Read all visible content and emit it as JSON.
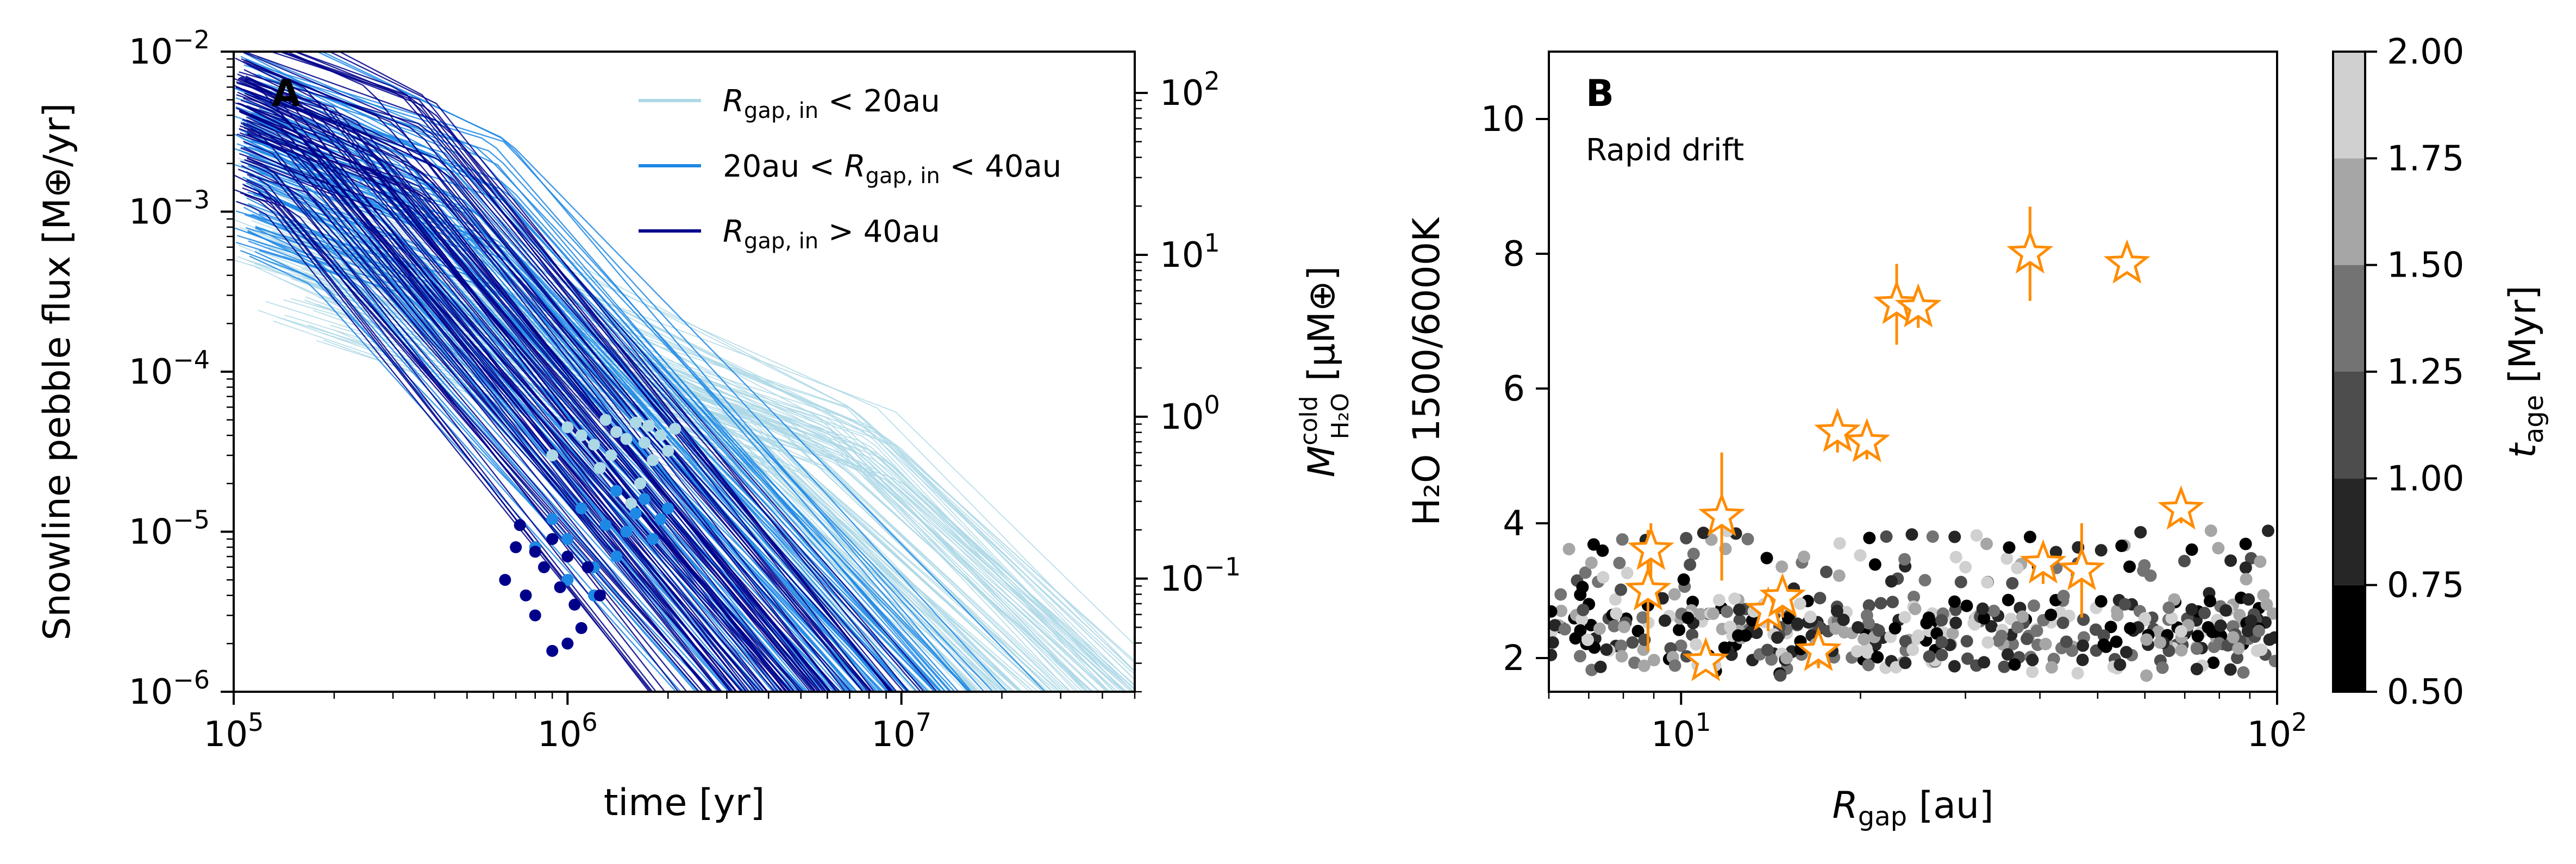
{
  "chart_data": [
    {
      "panel": "A",
      "type": "line",
      "panel_label": "A",
      "xlabel": "time [yr]",
      "ylabel": "Snowline pebble flux [M⊕/yr]",
      "y2label_html": "M^cold_H2O [µM⊕]",
      "y2label_parts": {
        "symbol": "M",
        "sup": "cold",
        "sub": "H₂O",
        "unit": " [μM⊕]"
      },
      "xscale": "log",
      "yscale": "log",
      "xlim": [
        100000,
        50000000
      ],
      "ylim": [
        1e-06,
        0.01
      ],
      "x_ticks": [
        {
          "value": 100000,
          "base": "10",
          "exp": "5"
        },
        {
          "value": 1000000,
          "base": "10",
          "exp": "6"
        },
        {
          "value": 10000000,
          "base": "10",
          "exp": "7"
        }
      ],
      "y_ticks": [
        {
          "value": 0.01,
          "base": "10",
          "exp": "−2"
        },
        {
          "value": 0.001,
          "base": "10",
          "exp": "−3"
        },
        {
          "value": 0.0001,
          "base": "10",
          "exp": "−4"
        },
        {
          "value": 1e-05,
          "base": "10",
          "exp": "−5"
        },
        {
          "value": 1e-06,
          "base": "10",
          "exp": "−6"
        }
      ],
      "y2scale": "log",
      "y2lim": [
        0.02,
        180
      ],
      "y2_ticks": [
        {
          "value": 100,
          "base": "10",
          "exp": "2"
        },
        {
          "value": 10,
          "base": "10",
          "exp": "1"
        },
        {
          "value": 1,
          "base": "10",
          "exp": "0"
        },
        {
          "value": 0.1,
          "base": "10",
          "exp": "−1"
        }
      ],
      "legend_position": "top-right",
      "series": [
        {
          "name": "R_gap,in < 20au",
          "legend_html": [
            "R",
            "gap, in",
            " < 20au"
          ],
          "color": "#add8e6",
          "n_curves": 120,
          "curve_params": {
            "plateau_range": [
              2e-05,
              6e-05
            ],
            "t_break_range": [
              2000000,
              10000000
            ],
            "slope": -2.0,
            "t_start_range": [
              100000,
              200000
            ]
          }
        },
        {
          "name": "20au < R_gap,in < 40au",
          "legend_html": [
            "20au < R",
            "gap, in",
            " < 40au"
          ],
          "color": "#1e88e5",
          "n_curves": 110,
          "curve_params": {
            "plateau_range": [
              0.0003,
              0.003
            ],
            "t_break_range": [
              150000,
              700000
            ],
            "slope": -2.3,
            "t_start_range": [
              100000,
              120000
            ]
          }
        },
        {
          "name": "R_gap,in > 40au",
          "legend_html": [
            "R",
            "gap, in",
            " > 40au"
          ],
          "color": "#00008b",
          "n_curves": 90,
          "curve_params": {
            "plateau_range": [
              0.001,
              0.006
            ],
            "t_break_range": [
              120000,
              450000
            ],
            "slope": -2.5,
            "t_start_range": [
              100000,
              110000
            ]
          }
        }
      ],
      "scatter_groups": [
        {
          "series": "R_gap,in < 20au",
          "color": "#add8e6",
          "points": [
            [
              900000,
              3e-05
            ],
            [
              1000000,
              4.5e-05
            ],
            [
              1100000,
              4e-05
            ],
            [
              1200000,
              3.5e-05
            ],
            [
              1300000,
              5e-05
            ],
            [
              1400000,
              4.2e-05
            ],
            [
              1500000,
              3.8e-05
            ],
            [
              1600000,
              4.8e-05
            ],
            [
              1700000,
              3.6e-05
            ],
            [
              1800000,
              2.8e-05
            ],
            [
              1900000,
              4e-05
            ],
            [
              2000000,
              3.2e-05
            ],
            [
              2100000,
              4.4e-05
            ],
            [
              1350000,
              3e-05
            ],
            [
              1650000,
              2e-05
            ],
            [
              1750000,
              4.6e-05
            ],
            [
              1250000,
              2.5e-05
            ],
            [
              1550000,
              1.5e-05
            ]
          ]
        },
        {
          "series": "20au < R_gap,in < 40au",
          "color": "#1e88e5",
          "points": [
            [
              800000,
              8e-06
            ],
            [
              900000,
              1.2e-05
            ],
            [
              1000000,
              9e-06
            ],
            [
              1100000,
              1.4e-05
            ],
            [
              1200000,
              6e-06
            ],
            [
              1300000,
              1.1e-05
            ],
            [
              1400000,
              7e-06
            ],
            [
              1500000,
              1e-05
            ],
            [
              1600000,
              1.3e-05
            ],
            [
              1700000,
              1.6e-05
            ],
            [
              1800000,
              9e-06
            ],
            [
              1900000,
              1.2e-05
            ],
            [
              1000000,
              5e-06
            ],
            [
              1200000,
              4e-06
            ],
            [
              1400000,
              1.8e-05
            ],
            [
              2000000,
              1.4e-05
            ]
          ]
        },
        {
          "series": "R_gap,in > 40au",
          "color": "#00008b",
          "points": [
            [
              650000,
              5e-06
            ],
            [
              700000,
              8e-06
            ],
            [
              750000,
              4e-06
            ],
            [
              800000,
              3e-06
            ],
            [
              850000,
              6e-06
            ],
            [
              900000,
              9e-06
            ],
            [
              950000,
              4.5e-06
            ],
            [
              1000000,
              7e-06
            ],
            [
              1050000,
              3.5e-06
            ],
            [
              1100000,
              2.5e-06
            ],
            [
              1150000,
              6e-06
            ],
            [
              1250000,
              4e-06
            ],
            [
              900000,
              1.8e-06
            ],
            [
              1000000,
              2e-06
            ],
            [
              800000,
              7.5e-06
            ],
            [
              720000,
              1.1e-05
            ]
          ]
        }
      ]
    },
    {
      "panel": "B",
      "type": "scatter",
      "panel_label": "B",
      "annotation": "Rapid drift",
      "xlabel": {
        "symbol": "R",
        "sub": "gap",
        "unit": " [au]"
      },
      "ylabel": "H₂O 1500/6000K",
      "xscale": "log",
      "xlim": [
        6,
        100
      ],
      "ylim": [
        1.5,
        11
      ],
      "x_ticks": [
        {
          "value": 10,
          "base": "10",
          "exp": "1"
        },
        {
          "value": 100,
          "base": "10",
          "exp": "2"
        }
      ],
      "y_ticks": [
        {
          "value": 2,
          "label": "2"
        },
        {
          "value": 4,
          "label": "4"
        },
        {
          "value": 6,
          "label": "6"
        },
        {
          "value": 8,
          "label": "8"
        },
        {
          "value": 10,
          "label": "10"
        }
      ],
      "colorbar": {
        "label": {
          "symbol": "t",
          "sub": "age",
          "unit": " [Myr]"
        },
        "range": [
          0.5,
          2.0
        ],
        "ticks": [
          "0.50",
          "0.75",
          "1.00",
          "1.25",
          "1.50",
          "1.75",
          "2.00"
        ],
        "bins": [
          {
            "from": 0.5,
            "to": 0.75,
            "color": "#000000"
          },
          {
            "from": 0.75,
            "to": 1.0,
            "color": "#262626"
          },
          {
            "from": 1.0,
            "to": 1.25,
            "color": "#4d4d4d"
          },
          {
            "from": 1.25,
            "to": 1.5,
            "color": "#737373"
          },
          {
            "from": 1.5,
            "to": 1.75,
            "color": "#a6a6a6"
          },
          {
            "from": 1.75,
            "to": 2.0,
            "color": "#d0d0d0"
          }
        ]
      },
      "model_points_description": "dense band of model points between y = 1.7 and 3.9 across the full x range",
      "model_points": {
        "count": 520,
        "y_range": [
          1.7,
          3.9
        ],
        "x_range": [
          6,
          100
        ]
      },
      "observed": {
        "marker": "open-star",
        "color": "#ff8c00",
        "points": [
          {
            "x": 8.8,
            "y": 3.0,
            "yerr": 0.9
          },
          {
            "x": 8.9,
            "y": 3.6,
            "yerr": 0.4
          },
          {
            "x": 11.0,
            "y": 1.95,
            "yerr": 0.0
          },
          {
            "x": 11.7,
            "y": 4.1,
            "yerr": 0.95
          },
          {
            "x": 14.0,
            "y": 2.7,
            "yerr": 0.3
          },
          {
            "x": 14.8,
            "y": 2.9,
            "yerr": 0.3
          },
          {
            "x": 17.0,
            "y": 2.1,
            "yerr": 0.25
          },
          {
            "x": 18.3,
            "y": 5.35,
            "yerr": 0.3
          },
          {
            "x": 20.5,
            "y": 5.2,
            "yerr": 0.25
          },
          {
            "x": 23.0,
            "y": 7.25,
            "yerr": 0.6
          },
          {
            "x": 25.0,
            "y": 7.2,
            "yerr": 0.3
          },
          {
            "x": 38.5,
            "y": 8.0,
            "yerr": 0.7
          },
          {
            "x": 40.5,
            "y": 3.4,
            "yerr": 0.3
          },
          {
            "x": 47.0,
            "y": 3.3,
            "yerr": 0.7
          },
          {
            "x": 56.0,
            "y": 7.85,
            "yerr": 0.15
          },
          {
            "x": 69.0,
            "y": 4.2,
            "yerr": 0.2
          }
        ]
      }
    }
  ]
}
